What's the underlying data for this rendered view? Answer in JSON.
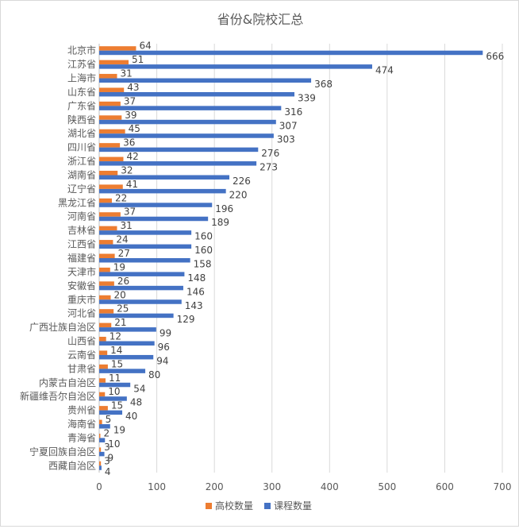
{
  "chart_data": {
    "type": "bar",
    "orientation": "horizontal",
    "title": "省份&院校汇总",
    "categories": [
      "北京市",
      "江苏省",
      "上海市",
      "山东省",
      "广东省",
      "陕西省",
      "湖北省",
      "四川省",
      "浙江省",
      "湖南省",
      "辽宁省",
      "黑龙江省",
      "河南省",
      "吉林省",
      "江西省",
      "福建省",
      "天津市",
      "安徽省",
      "重庆市",
      "河北省",
      "广西壮族自治区",
      "山西省",
      "云南省",
      "甘肃省",
      "内蒙古自治区",
      "新疆维吾尔自治区",
      "贵州省",
      "海南省",
      "青海省",
      "宁夏回族自治区",
      "西藏自治区"
    ],
    "series": [
      {
        "name": "高校数量",
        "color": "#ed7d31",
        "values": [
          64,
          51,
          31,
          43,
          37,
          39,
          45,
          36,
          42,
          32,
          41,
          22,
          37,
          31,
          24,
          27,
          19,
          26,
          20,
          25,
          21,
          12,
          14,
          15,
          11,
          10,
          15,
          5,
          2,
          3,
          3
        ]
      },
      {
        "name": "课程数量",
        "color": "#4472c4",
        "values": [
          666,
          474,
          368,
          339,
          316,
          307,
          303,
          276,
          273,
          226,
          220,
          196,
          189,
          160,
          160,
          158,
          148,
          146,
          143,
          129,
          99,
          96,
          94,
          80,
          54,
          48,
          40,
          19,
          10,
          9,
          4
        ]
      }
    ],
    "xlim": [
      0,
      700
    ],
    "xticks": [
      0,
      100,
      200,
      300,
      400,
      500,
      600,
      700
    ],
    "xtick_labels": [
      "0",
      "100",
      "200",
      "300",
      "400",
      "500",
      "600",
      "700"
    ],
    "grid": true,
    "legend": "bottom"
  }
}
